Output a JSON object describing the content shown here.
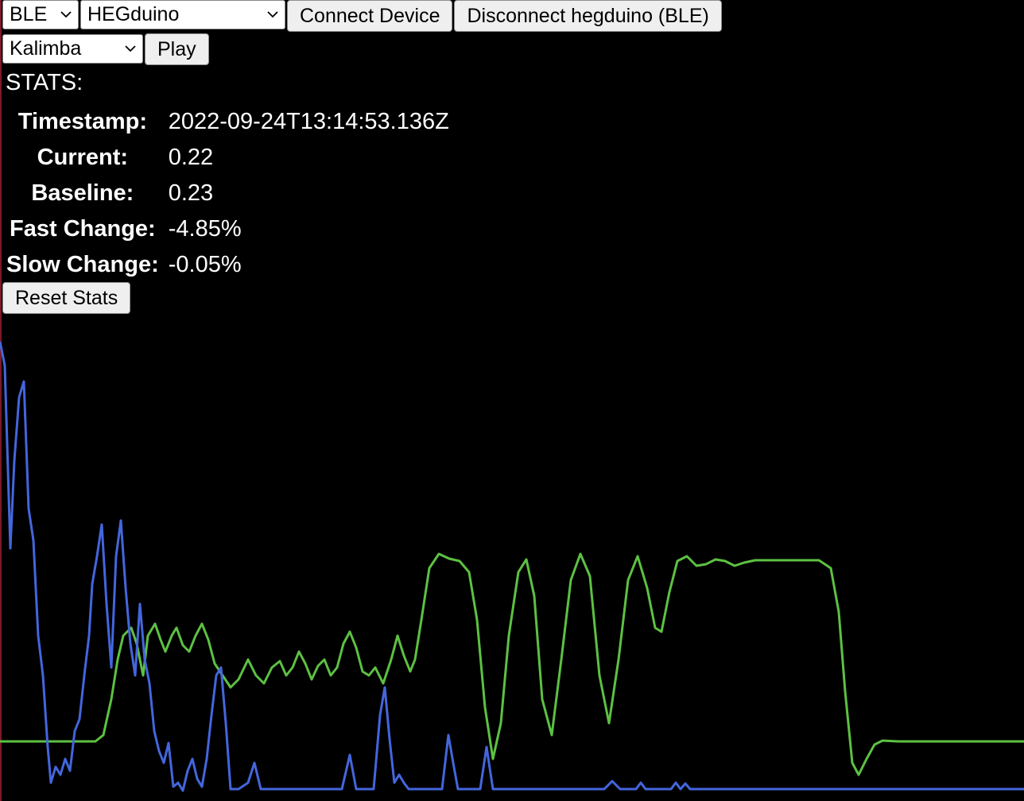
{
  "toolbar": {
    "protocol_select": "BLE",
    "device_select": "HEGduino",
    "connect_label": "Connect Device",
    "disconnect_label": "Disconnect hegduino (BLE)"
  },
  "audio": {
    "sound_select": "Kalimba",
    "play_label": "Play"
  },
  "stats": {
    "title": "STATS:",
    "rows": [
      {
        "label": "Timestamp:",
        "value": "2022-09-24T13:14:53.136Z"
      },
      {
        "label": "Current:",
        "value": "0.22"
      },
      {
        "label": "Baseline:",
        "value": "0.23"
      },
      {
        "label": "Fast Change:",
        "value": "-4.85%"
      },
      {
        "label": "Slow Change:",
        "value": "-0.05%"
      }
    ],
    "reset_label": "Reset Stats"
  },
  "chart_data": {
    "type": "line",
    "series": [
      {
        "color": "#5dc142",
        "points": [
          [
            0,
            933
          ],
          [
            120,
            933
          ],
          [
            130,
            925
          ],
          [
            140,
            880
          ],
          [
            148,
            830
          ],
          [
            155,
            800
          ],
          [
            165,
            790
          ],
          [
            172,
            810
          ],
          [
            180,
            850
          ],
          [
            186,
            800
          ],
          [
            195,
            785
          ],
          [
            202,
            805
          ],
          [
            208,
            820
          ],
          [
            216,
            800
          ],
          [
            222,
            790
          ],
          [
            230,
            812
          ],
          [
            238,
            820
          ],
          [
            246,
            800
          ],
          [
            254,
            785
          ],
          [
            262,
            805
          ],
          [
            270,
            835
          ],
          [
            280,
            850
          ],
          [
            290,
            865
          ],
          [
            300,
            855
          ],
          [
            312,
            830
          ],
          [
            322,
            850
          ],
          [
            332,
            860
          ],
          [
            342,
            840
          ],
          [
            352,
            832
          ],
          [
            360,
            850
          ],
          [
            368,
            840
          ],
          [
            376,
            820
          ],
          [
            384,
            835
          ],
          [
            392,
            855
          ],
          [
            400,
            838
          ],
          [
            408,
            830
          ],
          [
            416,
            850
          ],
          [
            424,
            840
          ],
          [
            432,
            810
          ],
          [
            440,
            795
          ],
          [
            448,
            815
          ],
          [
            456,
            845
          ],
          [
            464,
            850
          ],
          [
            472,
            840
          ],
          [
            482,
            860
          ],
          [
            492,
            830
          ],
          [
            500,
            800
          ],
          [
            508,
            825
          ],
          [
            516,
            845
          ],
          [
            522,
            830
          ],
          [
            530,
            780
          ],
          [
            540,
            715
          ],
          [
            552,
            697
          ],
          [
            565,
            703
          ],
          [
            578,
            706
          ],
          [
            590,
            720
          ],
          [
            600,
            780
          ],
          [
            610,
            890
          ],
          [
            620,
            955
          ],
          [
            630,
            910
          ],
          [
            640,
            800
          ],
          [
            652,
            720
          ],
          [
            662,
            704
          ],
          [
            672,
            750
          ],
          [
            682,
            880
          ],
          [
            694,
            925
          ],
          [
            706,
            830
          ],
          [
            718,
            730
          ],
          [
            730,
            697
          ],
          [
            742,
            725
          ],
          [
            754,
            850
          ],
          [
            766,
            910
          ],
          [
            778,
            830
          ],
          [
            790,
            730
          ],
          [
            802,
            700
          ],
          [
            814,
            740
          ],
          [
            824,
            790
          ],
          [
            832,
            795
          ],
          [
            842,
            745
          ],
          [
            852,
            706
          ],
          [
            864,
            700
          ],
          [
            876,
            712
          ],
          [
            888,
            710
          ],
          [
            900,
            704
          ],
          [
            912,
            706
          ],
          [
            924,
            712
          ],
          [
            936,
            708
          ],
          [
            950,
            705
          ],
          [
            990,
            705
          ],
          [
            1030,
            705
          ],
          [
            1045,
            715
          ],
          [
            1055,
            770
          ],
          [
            1063,
            870
          ],
          [
            1072,
            960
          ],
          [
            1080,
            975
          ],
          [
            1090,
            955
          ],
          [
            1100,
            937
          ],
          [
            1110,
            932
          ],
          [
            1130,
            933
          ],
          [
            1288,
            933
          ]
        ]
      },
      {
        "color": "#4466dd",
        "points": [
          [
            0,
            430
          ],
          [
            6,
            460
          ],
          [
            13,
            690
          ],
          [
            18,
            580
          ],
          [
            24,
            500
          ],
          [
            30,
            480
          ],
          [
            36,
            640
          ],
          [
            42,
            680
          ],
          [
            48,
            800
          ],
          [
            54,
            850
          ],
          [
            60,
            940
          ],
          [
            64,
            985
          ],
          [
            70,
            965
          ],
          [
            76,
            975
          ],
          [
            82,
            955
          ],
          [
            88,
            970
          ],
          [
            94,
            920
          ],
          [
            100,
            905
          ],
          [
            106,
            850
          ],
          [
            112,
            800
          ],
          [
            116,
            735
          ],
          [
            122,
            700
          ],
          [
            128,
            660
          ],
          [
            134,
            760
          ],
          [
            140,
            840
          ],
          [
            146,
            700
          ],
          [
            152,
            655
          ],
          [
            158,
            740
          ],
          [
            164,
            810
          ],
          [
            170,
            850
          ],
          [
            176,
            760
          ],
          [
            182,
            830
          ],
          [
            188,
            860
          ],
          [
            194,
            920
          ],
          [
            200,
            945
          ],
          [
            206,
            960
          ],
          [
            212,
            935
          ],
          [
            218,
            990
          ],
          [
            224,
            985
          ],
          [
            230,
            995
          ],
          [
            236,
            970
          ],
          [
            242,
            955
          ],
          [
            248,
            980
          ],
          [
            254,
            990
          ],
          [
            260,
            955
          ],
          [
            266,
            900
          ],
          [
            272,
            850
          ],
          [
            278,
            840
          ],
          [
            284,
            910
          ],
          [
            290,
            993
          ],
          [
            300,
            993
          ],
          [
            312,
            985
          ],
          [
            320,
            960
          ],
          [
            328,
            993
          ],
          [
            400,
            993
          ],
          [
            430,
            993
          ],
          [
            440,
            950
          ],
          [
            448,
            993
          ],
          [
            470,
            993
          ],
          [
            478,
            900
          ],
          [
            484,
            865
          ],
          [
            490,
            930
          ],
          [
            496,
            985
          ],
          [
            502,
            975
          ],
          [
            508,
            985
          ],
          [
            514,
            993
          ],
          [
            556,
            993
          ],
          [
            564,
            925
          ],
          [
            570,
            960
          ],
          [
            576,
            993
          ],
          [
            604,
            993
          ],
          [
            612,
            940
          ],
          [
            620,
            993
          ],
          [
            660,
            993
          ],
          [
            700,
            993
          ],
          [
            760,
            993
          ],
          [
            770,
            983
          ],
          [
            780,
            993
          ],
          [
            800,
            993
          ],
          [
            806,
            985
          ],
          [
            812,
            993
          ],
          [
            844,
            993
          ],
          [
            850,
            985
          ],
          [
            856,
            993
          ],
          [
            862,
            986
          ],
          [
            868,
            993
          ],
          [
            1288,
            993
          ]
        ]
      }
    ]
  }
}
